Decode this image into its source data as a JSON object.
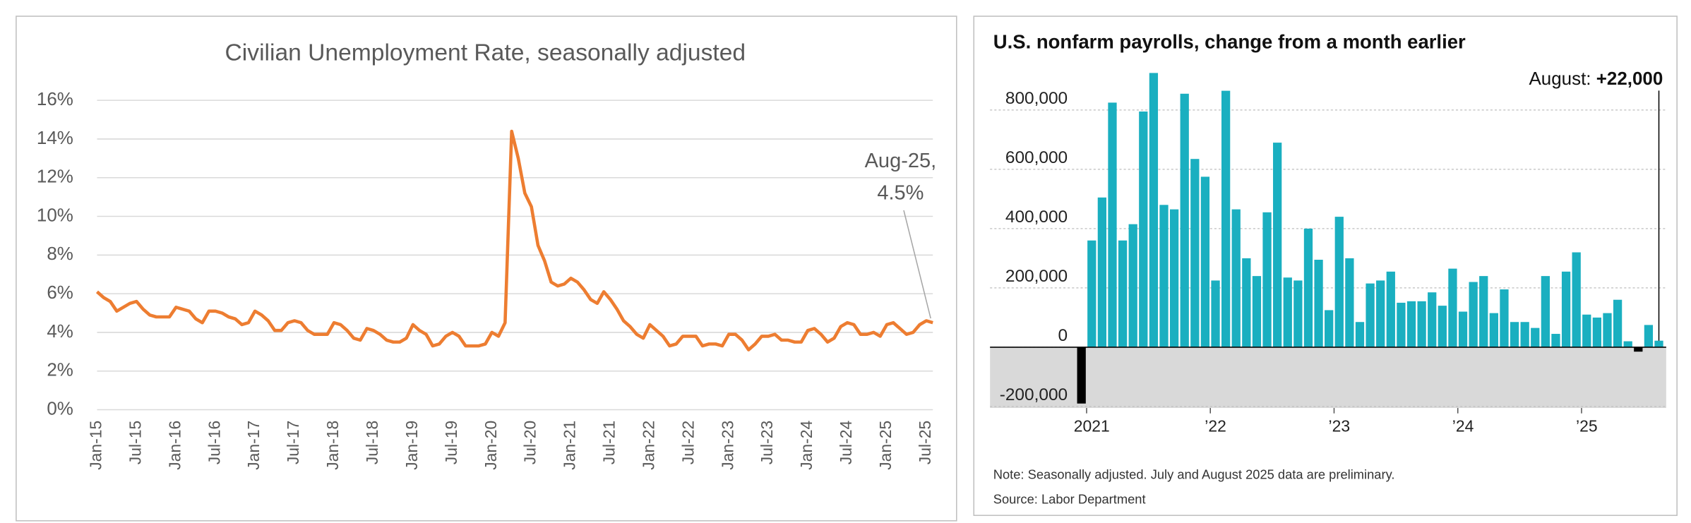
{
  "chart_data": [
    {
      "type": "line",
      "title": "Civilian Unemployment Rate, seasonally adjusted",
      "color": "#ED7D31",
      "grid": true,
      "categories": [
        "Jan-15",
        null,
        null,
        null,
        null,
        null,
        "Jul-15",
        null,
        null,
        null,
        null,
        null,
        "Jan-16",
        null,
        null,
        null,
        null,
        null,
        "Jul-16",
        null,
        null,
        null,
        null,
        null,
        "Jan-17",
        null,
        null,
        null,
        null,
        null,
        "Jul-17",
        null,
        null,
        null,
        null,
        null,
        "Jan-18",
        null,
        null,
        null,
        null,
        null,
        "Jul-18",
        null,
        null,
        null,
        null,
        null,
        "Jan-19",
        null,
        null,
        null,
        null,
        null,
        "Jul-19",
        null,
        null,
        null,
        null,
        null,
        "Jan-20",
        null,
        null,
        null,
        null,
        null,
        "Jul-20",
        null,
        null,
        null,
        null,
        null,
        "Jan-21",
        null,
        null,
        null,
        null,
        null,
        "Jul-21",
        null,
        null,
        null,
        null,
        null,
        "Jan-22",
        null,
        null,
        null,
        null,
        null,
        "Jul-22",
        null,
        null,
        null,
        null,
        null,
        "Jan-23",
        null,
        null,
        null,
        null,
        null,
        "Jul-23",
        null,
        null,
        null,
        null,
        null,
        "Jan-24",
        null,
        null,
        null,
        null,
        null,
        "Jul-24",
        null,
        null,
        null,
        null,
        null,
        "Jan-25",
        null,
        null,
        null,
        null,
        null,
        "Jul-25",
        null
      ],
      "values": [
        6.1,
        5.8,
        5.6,
        5.1,
        5.3,
        5.5,
        5.6,
        5.2,
        4.9,
        4.8,
        4.8,
        4.8,
        5.3,
        5.2,
        5.1,
        4.7,
        4.5,
        5.1,
        5.1,
        5.0,
        4.8,
        4.7,
        4.4,
        4.5,
        5.1,
        4.9,
        4.6,
        4.1,
        4.1,
        4.5,
        4.6,
        4.5,
        4.1,
        3.9,
        3.9,
        3.9,
        4.5,
        4.4,
        4.1,
        3.7,
        3.6,
        4.2,
        4.1,
        3.9,
        3.6,
        3.5,
        3.5,
        3.7,
        4.4,
        4.1,
        3.9,
        3.3,
        3.4,
        3.8,
        4.0,
        3.8,
        3.3,
        3.3,
        3.3,
        3.4,
        4.0,
        3.8,
        4.5,
        14.4,
        13.0,
        11.2,
        10.5,
        8.5,
        7.7,
        6.6,
        6.4,
        6.5,
        6.8,
        6.6,
        6.2,
        5.7,
        5.5,
        6.1,
        5.7,
        5.2,
        4.6,
        4.3,
        3.9,
        3.7,
        4.4,
        4.1,
        3.8,
        3.3,
        3.4,
        3.8,
        3.8,
        3.8,
        3.3,
        3.4,
        3.4,
        3.3,
        3.9,
        3.9,
        3.6,
        3.1,
        3.4,
        3.8,
        3.8,
        3.9,
        3.6,
        3.6,
        3.5,
        3.5,
        4.1,
        4.2,
        3.9,
        3.5,
        3.7,
        4.3,
        4.5,
        4.4,
        3.9,
        3.9,
        4.0,
        3.8,
        4.4,
        4.5,
        4.2,
        3.9,
        4.0,
        4.4,
        4.6,
        4.5
      ],
      "ylim": [
        0,
        16
      ],
      "yticks": [
        {
          "value": 0,
          "label": "0%"
        },
        {
          "value": 2,
          "label": "2%"
        },
        {
          "value": 4,
          "label": "4%"
        },
        {
          "value": 6,
          "label": "6%"
        },
        {
          "value": 8,
          "label": "8%"
        },
        {
          "value": 10,
          "label": "10%"
        },
        {
          "value": 12,
          "label": "12%"
        },
        {
          "value": 14,
          "label": "14%"
        },
        {
          "value": 16,
          "label": "16%"
        }
      ],
      "annotation": [
        "Aug-25,",
        "4.5%"
      ]
    },
    {
      "type": "bar",
      "title": "U.S. nonfarm payrolls, change from a month earlier",
      "color": "#1AAFC0",
      "negative_color": "#000000",
      "grid": true,
      "categories": [
        null,
        "2021",
        null,
        null,
        null,
        null,
        null,
        null,
        null,
        null,
        null,
        null,
        null,
        "’22",
        null,
        null,
        null,
        null,
        null,
        null,
        null,
        null,
        null,
        null,
        null,
        "’23",
        null,
        null,
        null,
        null,
        null,
        null,
        null,
        null,
        null,
        null,
        null,
        "’24",
        null,
        null,
        null,
        null,
        null,
        null,
        null,
        null,
        null,
        null,
        null,
        "’25",
        null,
        null,
        null,
        null,
        null,
        null,
        null
      ],
      "values": [
        -190000,
        360000,
        505000,
        825000,
        360000,
        415000,
        795000,
        925000,
        480000,
        465000,
        855000,
        635000,
        575000,
        225000,
        865000,
        465000,
        300000,
        240000,
        455000,
        690000,
        235000,
        225000,
        400000,
        295000,
        125000,
        440000,
        300000,
        85000,
        215000,
        225000,
        255000,
        150000,
        155000,
        155000,
        185000,
        140000,
        265000,
        120000,
        220000,
        240000,
        115000,
        195000,
        85000,
        85000,
        65000,
        240000,
        45000,
        255000,
        320000,
        110000,
        100000,
        115000,
        160000,
        20000,
        -15000,
        75000,
        22000
      ],
      "ylim": [
        -205000,
        960000
      ],
      "yticks": [
        {
          "value": -200000,
          "label": "-200,000"
        },
        0,
        {
          "value": 200000,
          "label": "200,000"
        },
        {
          "value": 400000,
          "label": "400,000"
        },
        {
          "value": 600000,
          "label": "600,000"
        },
        {
          "value": 800000,
          "label": "800,000"
        }
      ],
      "annotation": {
        "label": "August:",
        "value": "+22,000"
      },
      "note": "Note: Seasonally adjusted. July and August 2025 data are preliminary.",
      "source": "Source: Labor Department"
    }
  ]
}
